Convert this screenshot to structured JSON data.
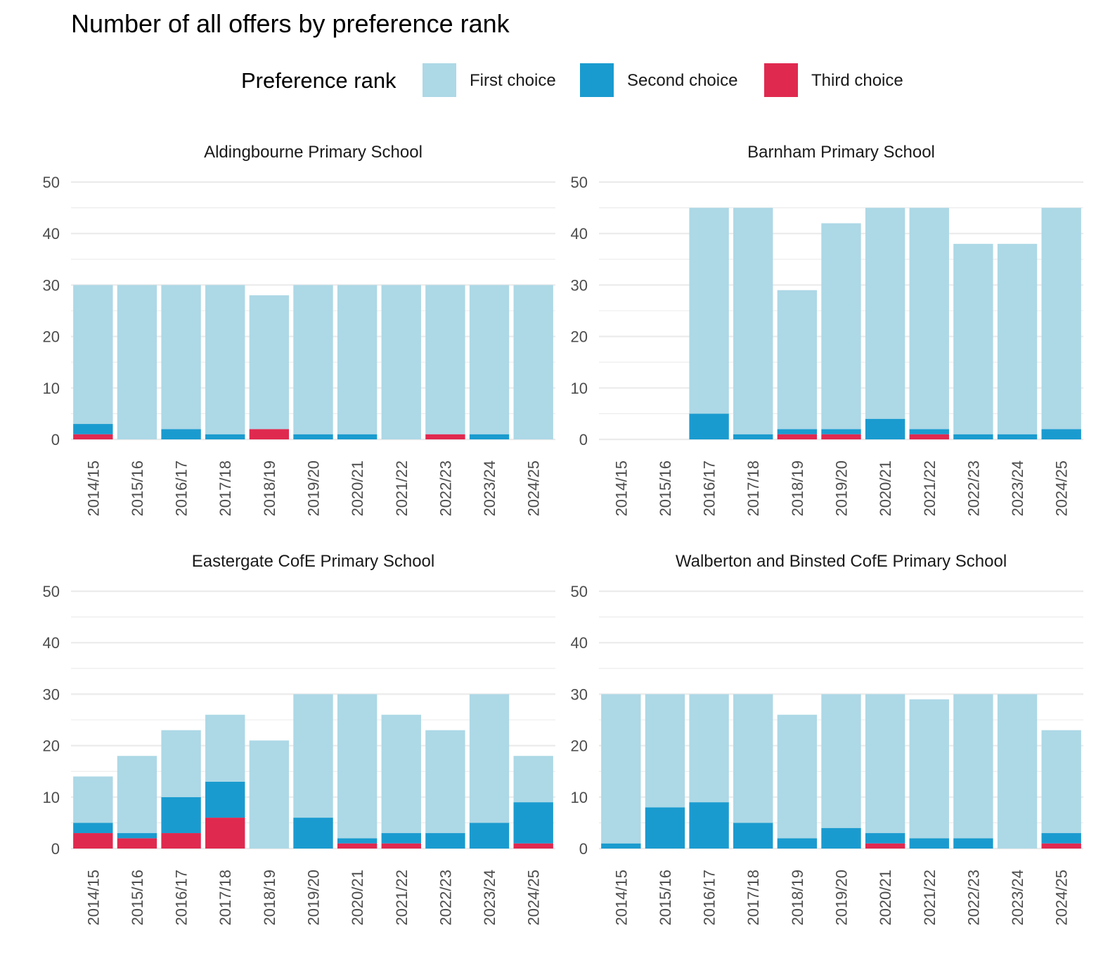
{
  "chart_data": {
    "type": "bar",
    "stacked": true,
    "title": "Number of all offers by preference rank",
    "legend": {
      "title": "Preference rank",
      "position": "top",
      "entries": [
        {
          "name": "First choice",
          "color": "#add8e6"
        },
        {
          "name": "Second choice",
          "color": "#1a9bcf"
        },
        {
          "name": "Third choice",
          "color": "#e0294f"
        }
      ]
    },
    "categories": [
      "2014/15",
      "2015/16",
      "2016/17",
      "2017/18",
      "2018/19",
      "2019/20",
      "2020/21",
      "2021/22",
      "2022/23",
      "2023/24",
      "2024/25"
    ],
    "ylim": [
      0,
      50
    ],
    "yticks": [
      0,
      10,
      20,
      30,
      40,
      50
    ],
    "xlabel": "",
    "ylabel": "",
    "facets": [
      {
        "title": "Aldingbourne Primary School",
        "series": [
          {
            "name": "First choice",
            "values": [
              27,
              30,
              28,
              29,
              26,
              29,
              29,
              30,
              29,
              29,
              30
            ]
          },
          {
            "name": "Second choice",
            "values": [
              2,
              0,
              2,
              1,
              0,
              1,
              1,
              0,
              0,
              1,
              0
            ]
          },
          {
            "name": "Third choice",
            "values": [
              1,
              0,
              0,
              0,
              2,
              0,
              0,
              0,
              1,
              0,
              0
            ]
          }
        ]
      },
      {
        "title": "Barnham Primary School",
        "series": [
          {
            "name": "First choice",
            "values": [
              0,
              0,
              40,
              44,
              27,
              40,
              41,
              43,
              37,
              37,
              43
            ]
          },
          {
            "name": "Second choice",
            "values": [
              0,
              0,
              5,
              1,
              1,
              1,
              4,
              1,
              1,
              1,
              2
            ]
          },
          {
            "name": "Third choice",
            "values": [
              0,
              0,
              0,
              0,
              1,
              1,
              0,
              1,
              0,
              0,
              0
            ]
          }
        ]
      },
      {
        "title": "Eastergate CofE Primary School",
        "series": [
          {
            "name": "First choice",
            "values": [
              9,
              15,
              13,
              13,
              21,
              24,
              28,
              23,
              20,
              25,
              9
            ]
          },
          {
            "name": "Second choice",
            "values": [
              2,
              1,
              7,
              7,
              0,
              6,
              1,
              2,
              3,
              5,
              8
            ]
          },
          {
            "name": "Third choice",
            "values": [
              3,
              2,
              3,
              6,
              0,
              0,
              1,
              1,
              0,
              0,
              1
            ]
          }
        ]
      },
      {
        "title": "Walberton and Binsted CofE Primary School",
        "series": [
          {
            "name": "First choice",
            "values": [
              29,
              22,
              21,
              25,
              24,
              26,
              27,
              27,
              28,
              30,
              20
            ]
          },
          {
            "name": "Second choice",
            "values": [
              1,
              8,
              9,
              5,
              2,
              4,
              2,
              2,
              2,
              0,
              2
            ]
          },
          {
            "name": "Third choice",
            "values": [
              0,
              0,
              0,
              0,
              0,
              0,
              1,
              0,
              0,
              0,
              1
            ]
          }
        ]
      }
    ]
  }
}
